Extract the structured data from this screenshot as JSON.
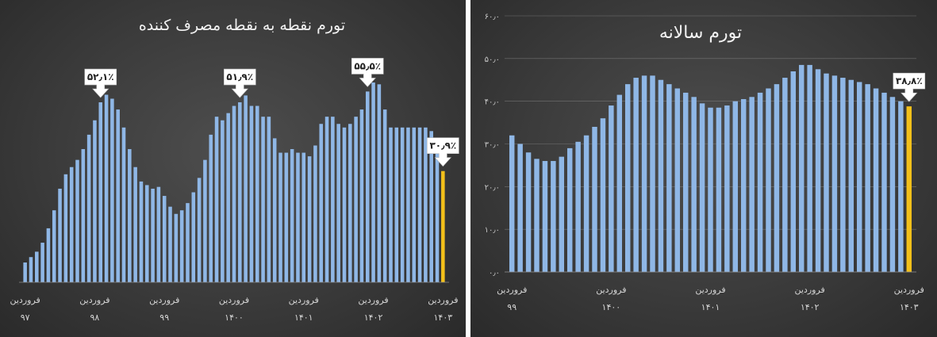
{
  "colors": {
    "bar": "#8fb7e6",
    "bar_highlight": "#f3c01a",
    "title": "#f2f2f2",
    "label": "#d6d6d6",
    "grid": "#8a8a8a",
    "callout_fill": "#ffffff",
    "callout_text": "#222222"
  },
  "chart_data": [
    {
      "type": "bar",
      "title": "تورم نقطه به نقطه مصرف کننده",
      "xlabel": "",
      "ylabel": "",
      "grid": false,
      "x_tick_labels": [
        {
          "line1": "فروردین",
          "line2": "۹۷",
          "index": 0
        },
        {
          "line1": "فروردین",
          "line2": "۹۸",
          "index": 12
        },
        {
          "line1": "فروردین",
          "line2": "۹۹",
          "index": 24
        },
        {
          "line1": "فروردین",
          "line2": "۱۴۰۰",
          "index": 36
        },
        {
          "line1": "فروردین",
          "line2": "۱۴۰۱",
          "index": 48
        },
        {
          "line1": "فروردین",
          "line2": "۱۴۰۲",
          "index": 60
        },
        {
          "line1": "فروردین",
          "line2": "۱۴۰۳",
          "index": 72
        }
      ],
      "annotations": [
        {
          "label": "۵۲٫۱٪",
          "index": 13
        },
        {
          "label": "۵۱٫۹٪",
          "index": 37
        },
        {
          "label": "۵۵٫۵٪",
          "index": 59
        },
        {
          "label": "۳۰٫۹٪",
          "index": 72
        }
      ],
      "highlight_index": 72,
      "values": [
        5.5,
        7,
        8.5,
        11,
        15,
        20,
        26,
        30,
        32,
        34,
        37,
        41,
        45,
        50,
        52.1,
        51,
        48,
        43,
        37,
        32,
        28,
        27,
        26,
        26.5,
        24,
        21,
        19,
        20,
        22,
        25,
        29,
        34,
        41,
        46,
        45,
        47,
        49,
        50,
        51.9,
        49,
        49,
        46,
        46,
        40,
        36,
        36,
        37,
        36,
        36,
        35,
        38,
        44,
        46,
        46,
        44,
        43,
        44,
        46,
        48,
        53,
        55.5,
        55,
        48,
        43,
        43,
        43,
        43,
        43,
        43,
        43,
        42,
        38,
        30.9
      ]
    },
    {
      "type": "bar",
      "title": "تورم سالانه",
      "xlabel": "",
      "ylabel": "",
      "grid": true,
      "ylim": [
        0,
        60
      ],
      "y_tick_labels": [
        {
          "label": "۰٫۰",
          "value": 0
        },
        {
          "label": "۱۰٫۰",
          "value": 10
        },
        {
          "label": "۲۰٫۰",
          "value": 20
        },
        {
          "label": "۳۰٫۰",
          "value": 30
        },
        {
          "label": "۴۰٫۰",
          "value": 40
        },
        {
          "label": "۵۰٫۰",
          "value": 50
        },
        {
          "label": "۶۰٫۰",
          "value": 60
        }
      ],
      "x_tick_labels": [
        {
          "line1": "فروردین",
          "line2": "۹۹",
          "index": 0
        },
        {
          "line1": "فروردین",
          "line2": "۱۴۰۰",
          "index": 12
        },
        {
          "line1": "فروردین",
          "line2": "۱۴۰۱",
          "index": 24
        },
        {
          "line1": "فروردین",
          "line2": "۱۴۰۲",
          "index": 36
        },
        {
          "line1": "فروردین",
          "line2": "۱۴۰۳",
          "index": 48
        }
      ],
      "annotations": [
        {
          "label": "۳۸٫۸٪",
          "index": 48
        }
      ],
      "highlight_index": 48,
      "values": [
        32,
        30,
        28,
        26.5,
        26,
        26,
        27,
        29,
        30.5,
        32,
        34,
        36,
        39,
        41.5,
        44,
        45.5,
        46,
        46,
        45,
        44,
        43,
        42,
        41,
        39.5,
        38.5,
        38.5,
        39,
        40,
        40.5,
        41,
        42,
        43,
        44,
        45.5,
        47,
        48.5,
        48.5,
        47.5,
        46.5,
        46,
        45.5,
        45,
        44.5,
        44,
        43,
        42,
        41,
        40,
        38.8
      ]
    }
  ]
}
